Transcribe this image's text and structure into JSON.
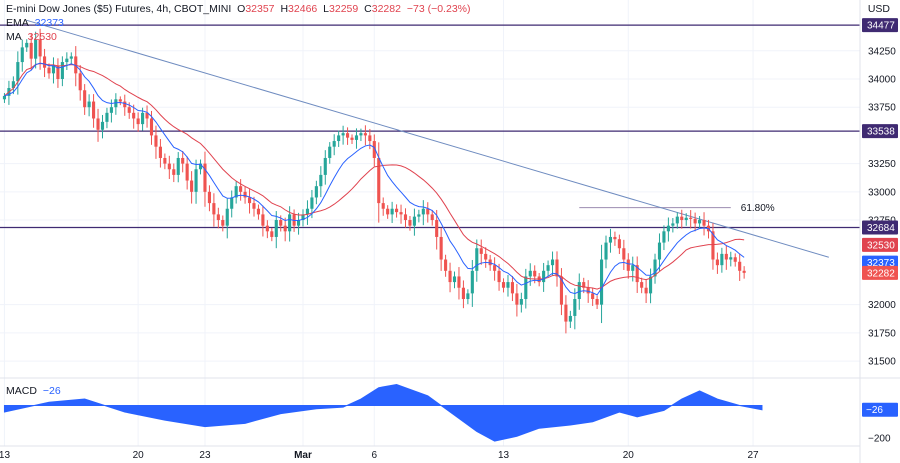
{
  "header": {
    "title": "E-mini Dow Jones ($5) Futures, 4h, CBOT_MINI",
    "o_label": "O",
    "o_value": "32357",
    "h_label": "H",
    "h_value": "32466",
    "l_label": "L",
    "l_value": "32259",
    "c_label": "C",
    "c_value": "32282",
    "change": "−73 (−0.23%)",
    "ema_label": "EMA",
    "ema_value": "32373",
    "ma_label": "MA",
    "ma_value": "32530",
    "currency": "USD"
  },
  "macd_legend": {
    "label": "MACD",
    "value": "−26"
  },
  "colors": {
    "up": "#26a69a",
    "down": "#ef5350",
    "ema": "#2962ff",
    "ma": "#e0434f",
    "hline": "#3f2a72",
    "trend": "#6f8cc0",
    "fib": "#9c8bb0",
    "macd": "#2962ff"
  },
  "chart_data": [
    {
      "type": "candlestick",
      "title": "E-mini Dow Jones ($5) Futures, 4h, CBOT_MINI",
      "ylim": [
        31350,
        34700
      ],
      "y_ticks": [
        "34250",
        "34000",
        "33750",
        "33250",
        "33000",
        "32750",
        "32000",
        "31750",
        "31500"
      ],
      "x_ticks": [
        {
          "label": "13",
          "x": 0
        },
        {
          "label": "20",
          "x": 30
        },
        {
          "label": "23",
          "x": 45
        },
        {
          "label": "Mar",
          "x": 67
        },
        {
          "label": "6",
          "x": 83
        },
        {
          "label": "13",
          "x": 112
        },
        {
          "label": "20",
          "x": 140
        },
        {
          "label": "27",
          "x": 168
        }
      ],
      "x_range": [
        -1,
        192
      ],
      "closes": [
        33850,
        33920,
        33980,
        34150,
        34280,
        34320,
        34180,
        34350,
        34200,
        34100,
        34050,
        34120,
        34000,
        34150,
        34180,
        34200,
        34050,
        33900,
        33750,
        33800,
        33650,
        33550,
        33620,
        33700,
        33750,
        33820,
        33800,
        33750,
        33700,
        33650,
        33600,
        33700,
        33650,
        33500,
        33400,
        33300,
        33250,
        33200,
        33150,
        33300,
        33250,
        33100,
        33000,
        33200,
        33250,
        33000,
        32900,
        32800,
        32750,
        32700,
        32850,
        32950,
        33050,
        33000,
        32950,
        32900,
        32850,
        32800,
        32700,
        32650,
        32600,
        32750,
        32700,
        32650,
        32800,
        32700,
        32750,
        32800,
        32850,
        32950,
        33050,
        33150,
        33300,
        33400,
        33450,
        33500,
        33520,
        33480,
        33460,
        33500,
        33520,
        33500,
        33450,
        33300,
        32900,
        32850,
        32800,
        32850,
        32820,
        32800,
        32750,
        32700,
        32780,
        32800,
        32850,
        32800,
        32750,
        32600,
        32400,
        32300,
        32200,
        32250,
        32150,
        32050,
        32100,
        32300,
        32500,
        32450,
        32400,
        32350,
        32300,
        32200,
        32150,
        32200,
        32100,
        32000,
        32050,
        32250,
        32300,
        32250,
        32200,
        32300,
        32350,
        32400,
        32250,
        32000,
        31850,
        31900,
        32050,
        32200,
        32150,
        32100,
        32050,
        32000,
        32400,
        32550,
        32600,
        32580,
        32500,
        32400,
        32300,
        32350,
        32200,
        32150,
        32100,
        32250,
        32400,
        32550,
        32650,
        32700,
        32720,
        32780,
        32750,
        32770,
        32760,
        32720,
        32750,
        32700,
        32650,
        32400,
        32350,
        32450,
        32400,
        32420,
        32380,
        32300,
        32282
      ],
      "annotations": [
        {
          "label": "34477",
          "y": 34477,
          "kind": "horizontal-line"
        },
        {
          "label": "33538",
          "y": 33538,
          "kind": "horizontal-line"
        },
        {
          "label": "32684",
          "y": 32684,
          "kind": "horizontal-line"
        },
        {
          "label": "61.80%",
          "y": 32860,
          "x_start": 129,
          "x_end": 163,
          "kind": "fibonacci-level"
        },
        {
          "kind": "trendline",
          "x1": 5,
          "y1": 34520,
          "x2": 185,
          "y2": 32420
        }
      ],
      "price_badges": [
        {
          "label": "34477",
          "y": 34477,
          "color": "#3f2a72"
        },
        {
          "label": "33538",
          "y": 33538,
          "color": "#3f2a72"
        },
        {
          "label": "32684",
          "y": 32684,
          "color": "#3f2a72"
        },
        {
          "label": "32530",
          "y": 32530,
          "color": "#e0434f"
        },
        {
          "label": "32373",
          "y": 32373,
          "color": "#2962ff"
        },
        {
          "label": "32282",
          "y": 32282,
          "color": "#ef5350"
        }
      ]
    },
    {
      "type": "area",
      "title": "MACD",
      "ylim": [
        -250,
        170
      ],
      "y_ticks": [
        "−200"
      ],
      "last_value": -26,
      "series": [
        {
          "name": "MACD",
          "x": [
            0,
            10,
            18,
            27,
            36,
            45,
            54,
            62,
            70,
            76,
            80,
            84,
            88,
            95,
            101,
            106,
            110,
            115,
            120,
            127,
            132,
            138,
            142,
            148,
            152,
            156,
            160,
            165,
            170
          ],
          "values": [
            -40,
            20,
            40,
            -40,
            -90,
            -130,
            -110,
            -50,
            -20,
            -10,
            40,
            110,
            130,
            60,
            -60,
            -160,
            -220,
            -190,
            -140,
            -120,
            -100,
            -40,
            -70,
            -30,
            40,
            90,
            40,
            0,
            -26
          ]
        }
      ]
    }
  ]
}
